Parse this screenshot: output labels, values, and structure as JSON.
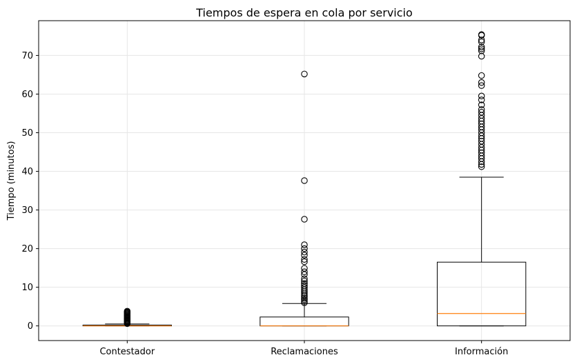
{
  "chart_data": {
    "type": "box",
    "title": "Tiempos de espera en cola por servicio",
    "xlabel": "",
    "ylabel": "Tiempo (minutos)",
    "ylim": [
      -3.8,
      79
    ],
    "yticks": [
      0,
      10,
      20,
      30,
      40,
      50,
      60,
      70
    ],
    "grid": true,
    "categories": [
      "Contestador",
      "Reclamaciones",
      "Información"
    ],
    "series": [
      {
        "category": "Contestador",
        "whisker_low": 0,
        "q1": 0,
        "median": 0,
        "q3": 0.2,
        "whisker_high": 0.5,
        "outliers": [
          0.6,
          0.8,
          1.0,
          1.2,
          1.4,
          1.6,
          1.8,
          2.0,
          2.2,
          2.4,
          2.6,
          2.8,
          3.0,
          3.2,
          3.4,
          3.6,
          3.8
        ]
      },
      {
        "category": "Reclamaciones",
        "whisker_low": 0,
        "q1": 0,
        "median": 0,
        "q3": 2.3,
        "whisker_high": 5.8,
        "outliers": [
          6.0,
          6.4,
          6.8,
          7.2,
          7.6,
          8.0,
          8.5,
          9.0,
          9.5,
          10.0,
          10.5,
          11.0,
          11.6,
          12.2,
          13.3,
          14.0,
          14.9,
          16.6,
          17.2,
          18.3,
          19.1,
          20.0,
          21.0,
          27.6,
          37.6,
          65.2
        ]
      },
      {
        "category": "Información",
        "whisker_low": 0,
        "q1": 0,
        "median": 3.2,
        "q3": 16.5,
        "whisker_high": 38.5,
        "outliers": [
          41.2,
          41.8,
          42.5,
          43.3,
          44.0,
          44.8,
          45.5,
          46.2,
          47.0,
          47.8,
          48.5,
          49.2,
          50.0,
          50.8,
          51.5,
          52.3,
          53.0,
          53.7,
          54.5,
          55.3,
          56.0,
          57.2,
          58.5,
          59.5,
          62.2,
          63.0,
          64.8,
          69.8,
          71.2,
          71.7,
          72.2,
          73.5,
          74.0,
          75.2,
          75.4
        ]
      }
    ],
    "colors": {
      "box": "#000000",
      "median": "#ff7f0e",
      "grid": "#e6e6e6",
      "outlier": "#000000"
    }
  }
}
